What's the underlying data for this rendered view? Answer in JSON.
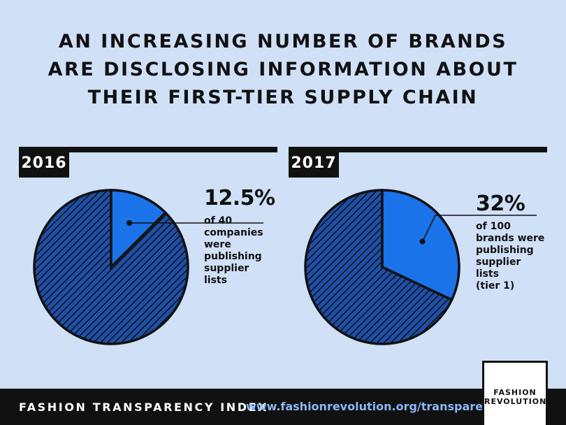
{
  "headline": {
    "line1": "AN INCREASING NUMBER OF BRANDS",
    "line2": "ARE DISCLOSING INFORMATION ABOUT",
    "line3": "THEIR FIRST-TIER SUPPLY CHAIN"
  },
  "chart_data": [
    {
      "type": "pie",
      "title": "2016",
      "value_percent": 12.5,
      "label": "12.5%",
      "description": [
        "of 40",
        "companies",
        "were",
        "publishing",
        "supplier",
        "lists"
      ]
    },
    {
      "type": "pie",
      "title": "2017",
      "value_percent": 32,
      "label": "32%",
      "description": [
        "of 100",
        "brands were",
        "publishing",
        "supplier",
        "lists",
        "(tier 1)"
      ]
    }
  ],
  "colors": {
    "background": "#cfe0f7",
    "highlight_slice": "#1a73e8",
    "rest_slice": "#1f4fa8",
    "ink": "#111111"
  },
  "footer": {
    "index_name": "FASHION TRANSPARENCY INDEX",
    "url": "www.fashionrevolution.org/transparency"
  },
  "logo": {
    "line1": "FASHION",
    "line2": "REVOLUTION"
  }
}
